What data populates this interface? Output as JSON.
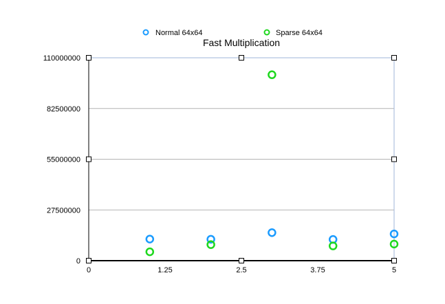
{
  "chart_data": {
    "type": "scatter",
    "title": "Fast Multiplication",
    "xlabel": "",
    "ylabel": "",
    "xlim": [
      0,
      5
    ],
    "ylim": [
      0,
      110000000
    ],
    "x_ticks": [
      "0",
      "1.25",
      "2.5",
      "3.75",
      "5"
    ],
    "y_ticks": [
      "0",
      "27500000",
      "55000000",
      "82500000",
      "110000000"
    ],
    "grid": true,
    "legend_position": "top",
    "series": [
      {
        "name": "Normal 64x64",
        "color": "#1a9bff",
        "x": [
          1,
          2,
          3,
          4,
          5
        ],
        "y": [
          11700000,
          11600000,
          15200000,
          11500000,
          14500000
        ]
      },
      {
        "name": "Sparse 64x64",
        "color": "#1ed81e",
        "x": [
          1,
          2,
          3,
          4,
          5
        ],
        "y": [
          4800000,
          8700000,
          100800000,
          8000000,
          9000000
        ]
      }
    ]
  }
}
